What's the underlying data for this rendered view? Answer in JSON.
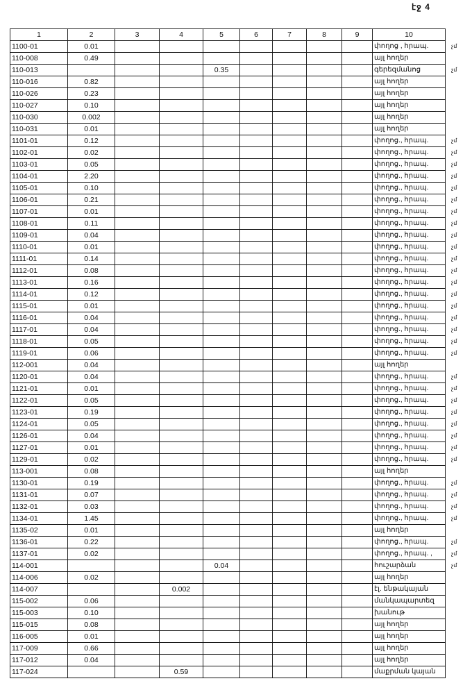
{
  "page_label": "էջ 4",
  "headers": [
    "1",
    "2",
    "3",
    "4",
    "5",
    "6",
    "7",
    "8",
    "9",
    "10"
  ],
  "rows": [
    {
      "id": "1100-01",
      "c2": "0.01",
      "c4": "",
      "c5": "",
      "use": "փողոց , հրապ.",
      "note": "չմ"
    },
    {
      "id": "110-008",
      "c2": "0.49",
      "c4": "",
      "c5": "",
      "use": "այլ հողեր",
      "note": ""
    },
    {
      "id": "110-013",
      "c2": "",
      "c4": "",
      "c5": "0.35",
      "use": "գերեզմանոց",
      "note": "չմ"
    },
    {
      "id": "110-016",
      "c2": "0.82",
      "c4": "",
      "c5": "",
      "use": "այլ հողեր",
      "note": ""
    },
    {
      "id": "110-026",
      "c2": "0.23",
      "c4": "",
      "c5": "",
      "use": "այլ հողեր",
      "note": ""
    },
    {
      "id": "110-027",
      "c2": "0.10",
      "c4": "",
      "c5": "",
      "use": "այլ հողեր",
      "note": ""
    },
    {
      "id": "110-030",
      "c2": "0.002",
      "c4": "",
      "c5": "",
      "use": "այլ հողեր",
      "note": ""
    },
    {
      "id": "110-031",
      "c2": "0.01",
      "c4": "",
      "c5": "",
      "use": "այլ հողեր",
      "note": ""
    },
    {
      "id": "1101-01",
      "c2": "0.12",
      "c4": "",
      "c5": "",
      "use": "փողոց., հրապ.",
      "note": "չմ"
    },
    {
      "id": "1102-01",
      "c2": "0.02",
      "c4": "",
      "c5": "",
      "use": "փողոց., հրապ.",
      "note": "չմ"
    },
    {
      "id": "1103-01",
      "c2": "0.05",
      "c4": "",
      "c5": "",
      "use": "փողոց., հրապ.",
      "note": "չմ"
    },
    {
      "id": "1104-01",
      "c2": "2.20",
      "c4": "",
      "c5": "",
      "use": "փողոց., հրապ.",
      "note": "չմ"
    },
    {
      "id": "1105-01",
      "c2": "0.10",
      "c4": "",
      "c5": "",
      "use": "փողոց., հրապ.",
      "note": "չմ"
    },
    {
      "id": "1106-01",
      "c2": "0.21",
      "c4": "",
      "c5": "",
      "use": "փողոց., հրապ.",
      "note": "չմ"
    },
    {
      "id": "1107-01",
      "c2": "0.01",
      "c4": "",
      "c5": "",
      "use": "փողոց., հրապ.",
      "note": "չմ"
    },
    {
      "id": "1108-01",
      "c2": "0.11",
      "c4": "",
      "c5": "",
      "use": "փողոց., հրապ.",
      "note": "չմ"
    },
    {
      "id": "1109-01",
      "c2": "0.04",
      "c4": "",
      "c5": "",
      "use": "փողոց., հրապ.",
      "note": "չմ"
    },
    {
      "id": "1110-01",
      "c2": "0.01",
      "c4": "",
      "c5": "",
      "use": "փողոց., հրապ.",
      "note": "չմ"
    },
    {
      "id": "1111-01",
      "c2": "0.14",
      "c4": "",
      "c5": "",
      "use": "փողոց., հրապ.",
      "note": "չմ"
    },
    {
      "id": "1112-01",
      "c2": "0.08",
      "c4": "",
      "c5": "",
      "use": "փողոց., հրապ.",
      "note": "չմ"
    },
    {
      "id": "1113-01",
      "c2": "0.16",
      "c4": "",
      "c5": "",
      "use": "փողոց., հրապ.",
      "note": "չմ"
    },
    {
      "id": "1114-01",
      "c2": "0.12",
      "c4": "",
      "c5": "",
      "use": "փողոց., հրապ.",
      "note": "չմ"
    },
    {
      "id": "1115-01",
      "c2": "0.01",
      "c4": "",
      "c5": "",
      "use": "փողոց., հրապ.",
      "note": "չմ"
    },
    {
      "id": "1116-01",
      "c2": "0.04",
      "c4": "",
      "c5": "",
      "use": "փողոց., հրապ.",
      "note": "չմ"
    },
    {
      "id": "1117-01",
      "c2": "0.04",
      "c4": "",
      "c5": "",
      "use": "փողոց., հրապ.",
      "note": "չմ"
    },
    {
      "id": "1118-01",
      "c2": "0.05",
      "c4": "",
      "c5": "",
      "use": "փողոց., հրապ.",
      "note": "չմ"
    },
    {
      "id": "1119-01",
      "c2": "0.06",
      "c4": "",
      "c5": "",
      "use": "փողոց., հրապ.",
      "note": "չմ"
    },
    {
      "id": "112-001",
      "c2": "0.04",
      "c4": "",
      "c5": "",
      "use": "այլ հողեր",
      "note": ""
    },
    {
      "id": "1120-01",
      "c2": "0.04",
      "c4": "",
      "c5": "",
      "use": "փողոց., հրապ.",
      "note": "չմ"
    },
    {
      "id": "1121-01",
      "c2": "0.01",
      "c4": "",
      "c5": "",
      "use": "փողոց., հրապ.",
      "note": "չմ"
    },
    {
      "id": "1122-01",
      "c2": "0.05",
      "c4": "",
      "c5": "",
      "use": "փողոց., հրապ.",
      "note": "չմ"
    },
    {
      "id": "1123-01",
      "c2": "0.19",
      "c4": "",
      "c5": "",
      "use": "փողոց., հրապ.",
      "note": "չմ"
    },
    {
      "id": "1124-01",
      "c2": "0.05",
      "c4": "",
      "c5": "",
      "use": "փողոց., հրապ.",
      "note": "չմ"
    },
    {
      "id": "1126-01",
      "c2": "0.04",
      "c4": "",
      "c5": "",
      "use": "փողոց., հրապ.",
      "note": "չմ"
    },
    {
      "id": "1127-01",
      "c2": "0.01",
      "c4": "",
      "c5": "",
      "use": "փողոց., հրապ.",
      "note": "չմ"
    },
    {
      "id": "1129-01",
      "c2": "0.02",
      "c4": "",
      "c5": "",
      "use": "փողոց., հրապ.",
      "note": "չմ"
    },
    {
      "id": "113-001",
      "c2": "0.08",
      "c4": "",
      "c5": "",
      "use": "այլ հողեր",
      "note": ""
    },
    {
      "id": "1130-01",
      "c2": "0.19",
      "c4": "",
      "c5": "",
      "use": "փողոց., հրապ.",
      "note": "չմ"
    },
    {
      "id": "1131-01",
      "c2": "0.07",
      "c4": "",
      "c5": "",
      "use": "փողոց., հրապ.",
      "note": "չմ"
    },
    {
      "id": "1132-01",
      "c2": "0.03",
      "c4": "",
      "c5": "",
      "use": "փողոց., հրապ.",
      "note": "չմ"
    },
    {
      "id": "1134-01",
      "c2": "1.45",
      "c4": "",
      "c5": "",
      "use": "փողոց., հրապ.",
      "note": "չմ"
    },
    {
      "id": "1135-02",
      "c2": "0.01",
      "c4": "",
      "c5": "",
      "use": "այլ հողեր",
      "note": ""
    },
    {
      "id": "1136-01",
      "c2": "0.22",
      "c4": "",
      "c5": "",
      "use": "փողոց., հրապ.",
      "note": "չմ"
    },
    {
      "id": "1137-01",
      "c2": "0.02",
      "c4": "",
      "c5": "",
      "use": "փողոց., հրապ. ,",
      "note": "չմ"
    },
    {
      "id": "114-001",
      "c2": "",
      "c4": "",
      "c5": "0.04",
      "use": "հուշարձան",
      "note": "չմ"
    },
    {
      "id": "114-006",
      "c2": "0.02",
      "c4": "",
      "c5": "",
      "use": "այլ հողեր",
      "note": ""
    },
    {
      "id": "114-007",
      "c2": "",
      "c4": "0.002",
      "c5": "",
      "use": "էլ. ենթակայան",
      "note": ""
    },
    {
      "id": "115-002",
      "c2": "0.06",
      "c4": "",
      "c5": "",
      "use": "մանկապարտեզ",
      "note": ""
    },
    {
      "id": "115-003",
      "c2": "0.10",
      "c4": "",
      "c5": "",
      "use": "խանութ",
      "note": ""
    },
    {
      "id": "115-015",
      "c2": "0.08",
      "c4": "",
      "c5": "",
      "use": "այլ հողեր",
      "note": ""
    },
    {
      "id": "116-005",
      "c2": "0.01",
      "c4": "",
      "c5": "",
      "use": "այլ հողեր",
      "note": ""
    },
    {
      "id": "117-009",
      "c2": "0.66",
      "c4": "",
      "c5": "",
      "use": "այլ հողեր",
      "note": ""
    },
    {
      "id": "117-012",
      "c2": "0.04",
      "c4": "",
      "c5": "",
      "use": "այլ հողեր",
      "note": ""
    },
    {
      "id": "117-024",
      "c2": "",
      "c4": "0.59",
      "c5": "",
      "use": "մաքրման կայան",
      "note": ""
    }
  ]
}
